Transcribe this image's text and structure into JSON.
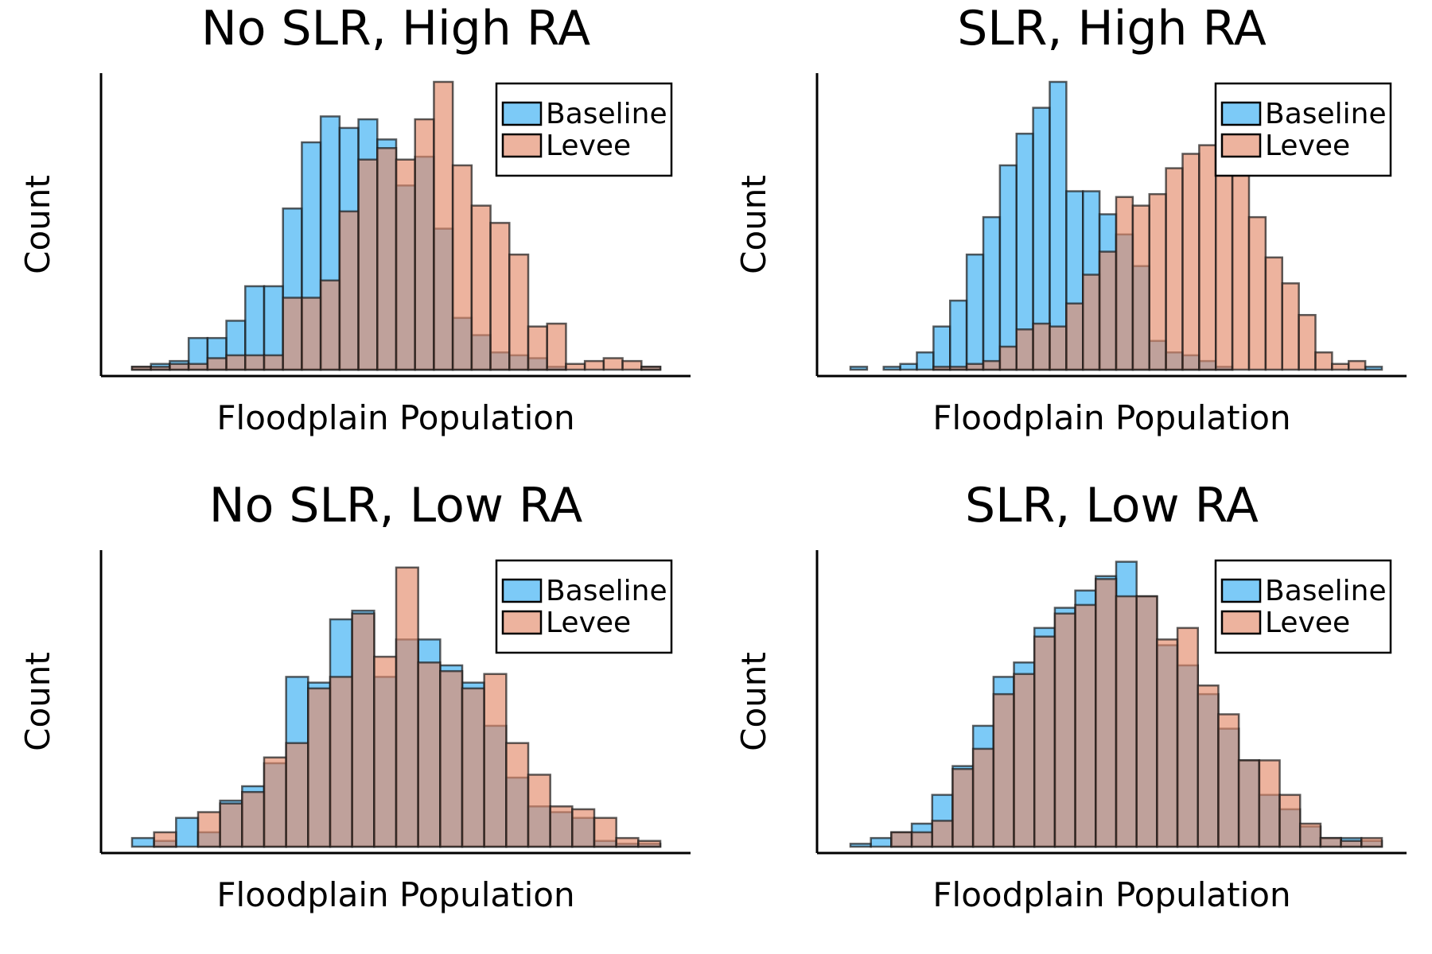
{
  "figure": {
    "legend_labels": [
      "Baseline",
      "Levee"
    ],
    "colors": {
      "baseline": "#36adf2",
      "levee": "#e48a6a",
      "edge": "#1a1a1a"
    }
  },
  "chart_data": [
    {
      "type": "bar",
      "title": "No SLR, High RA",
      "xlabel": "Floodplain Population",
      "ylabel": "Count",
      "grid": false,
      "legend": "top-right",
      "ylim": [
        0,
        102
      ],
      "series": [
        {
          "name": "Baseline",
          "values": [
            1,
            2,
            3,
            11,
            11,
            17,
            29,
            29,
            56,
            79,
            88,
            84,
            87,
            80,
            64,
            74,
            49,
            18,
            12,
            6,
            5,
            4,
            1,
            0,
            0,
            0,
            0,
            1
          ]
        },
        {
          "name": "Levee",
          "values": [
            1,
            1,
            2,
            2,
            4,
            5,
            5,
            5,
            25,
            25,
            31,
            55,
            73,
            77,
            73,
            87,
            100,
            71,
            57,
            51,
            40,
            15,
            16,
            2,
            3,
            4,
            3,
            1
          ]
        }
      ]
    },
    {
      "type": "bar",
      "title": "SLR, High RA",
      "xlabel": "Floodplain Population",
      "ylabel": "Count",
      "grid": false,
      "legend": "top-right",
      "ylim": [
        0,
        102
      ],
      "series": [
        {
          "name": "Baseline",
          "values": [
            1,
            0,
            1,
            2,
            6,
            15,
            24,
            40,
            53,
            71,
            82,
            91,
            100,
            62,
            62,
            54,
            47,
            36,
            10,
            6,
            5,
            3,
            1,
            0,
            0,
            0,
            0,
            0,
            0,
            0,
            0,
            1
          ]
        },
        {
          "name": "Levee",
          "values": [
            0,
            0,
            0,
            0,
            0,
            1,
            1,
            2,
            3,
            8,
            14,
            16,
            15,
            23,
            33,
            41,
            60,
            57,
            61,
            70,
            75,
            78,
            77,
            81,
            53,
            39,
            30,
            19,
            6,
            2,
            3,
            0
          ]
        }
      ]
    },
    {
      "type": "bar",
      "title": "No SLR, Low RA",
      "xlabel": "Floodplain Population",
      "ylabel": "Count",
      "grid": false,
      "legend": "top-right",
      "ylim": [
        0,
        102
      ],
      "series": [
        {
          "name": "Baseline",
          "values": [
            3,
            2,
            10,
            5,
            16,
            21,
            29,
            59,
            57,
            79,
            82,
            59,
            72,
            72,
            63,
            57,
            42,
            24,
            14,
            12,
            10,
            2,
            1,
            1
          ]
        },
        {
          "name": "Levee",
          "values": [
            0,
            5,
            0,
            12,
            15,
            19,
            31,
            36,
            55,
            59,
            81,
            66,
            97,
            64,
            61,
            55,
            60,
            36,
            25,
            14,
            13,
            10,
            3,
            2
          ]
        }
      ]
    },
    {
      "type": "bar",
      "title": "SLR, Low RA",
      "xlabel": "Floodplain Population",
      "ylabel": "Count",
      "grid": false,
      "legend": "top-right",
      "ylim": [
        0,
        102
      ],
      "series": [
        {
          "name": "Baseline",
          "values": [
            1,
            3,
            5,
            8,
            18,
            28,
            42,
            59,
            64,
            76,
            83,
            89,
            94,
            99,
            87,
            70,
            63,
            53,
            41,
            30,
            18,
            13,
            7,
            3,
            3,
            2
          ]
        },
        {
          "name": "Levee",
          "values": [
            0,
            0,
            5,
            5,
            9,
            27,
            34,
            53,
            60,
            73,
            81,
            84,
            93,
            87,
            87,
            72,
            76,
            56,
            46,
            30,
            30,
            18,
            8,
            3,
            2,
            3
          ]
        }
      ]
    }
  ]
}
